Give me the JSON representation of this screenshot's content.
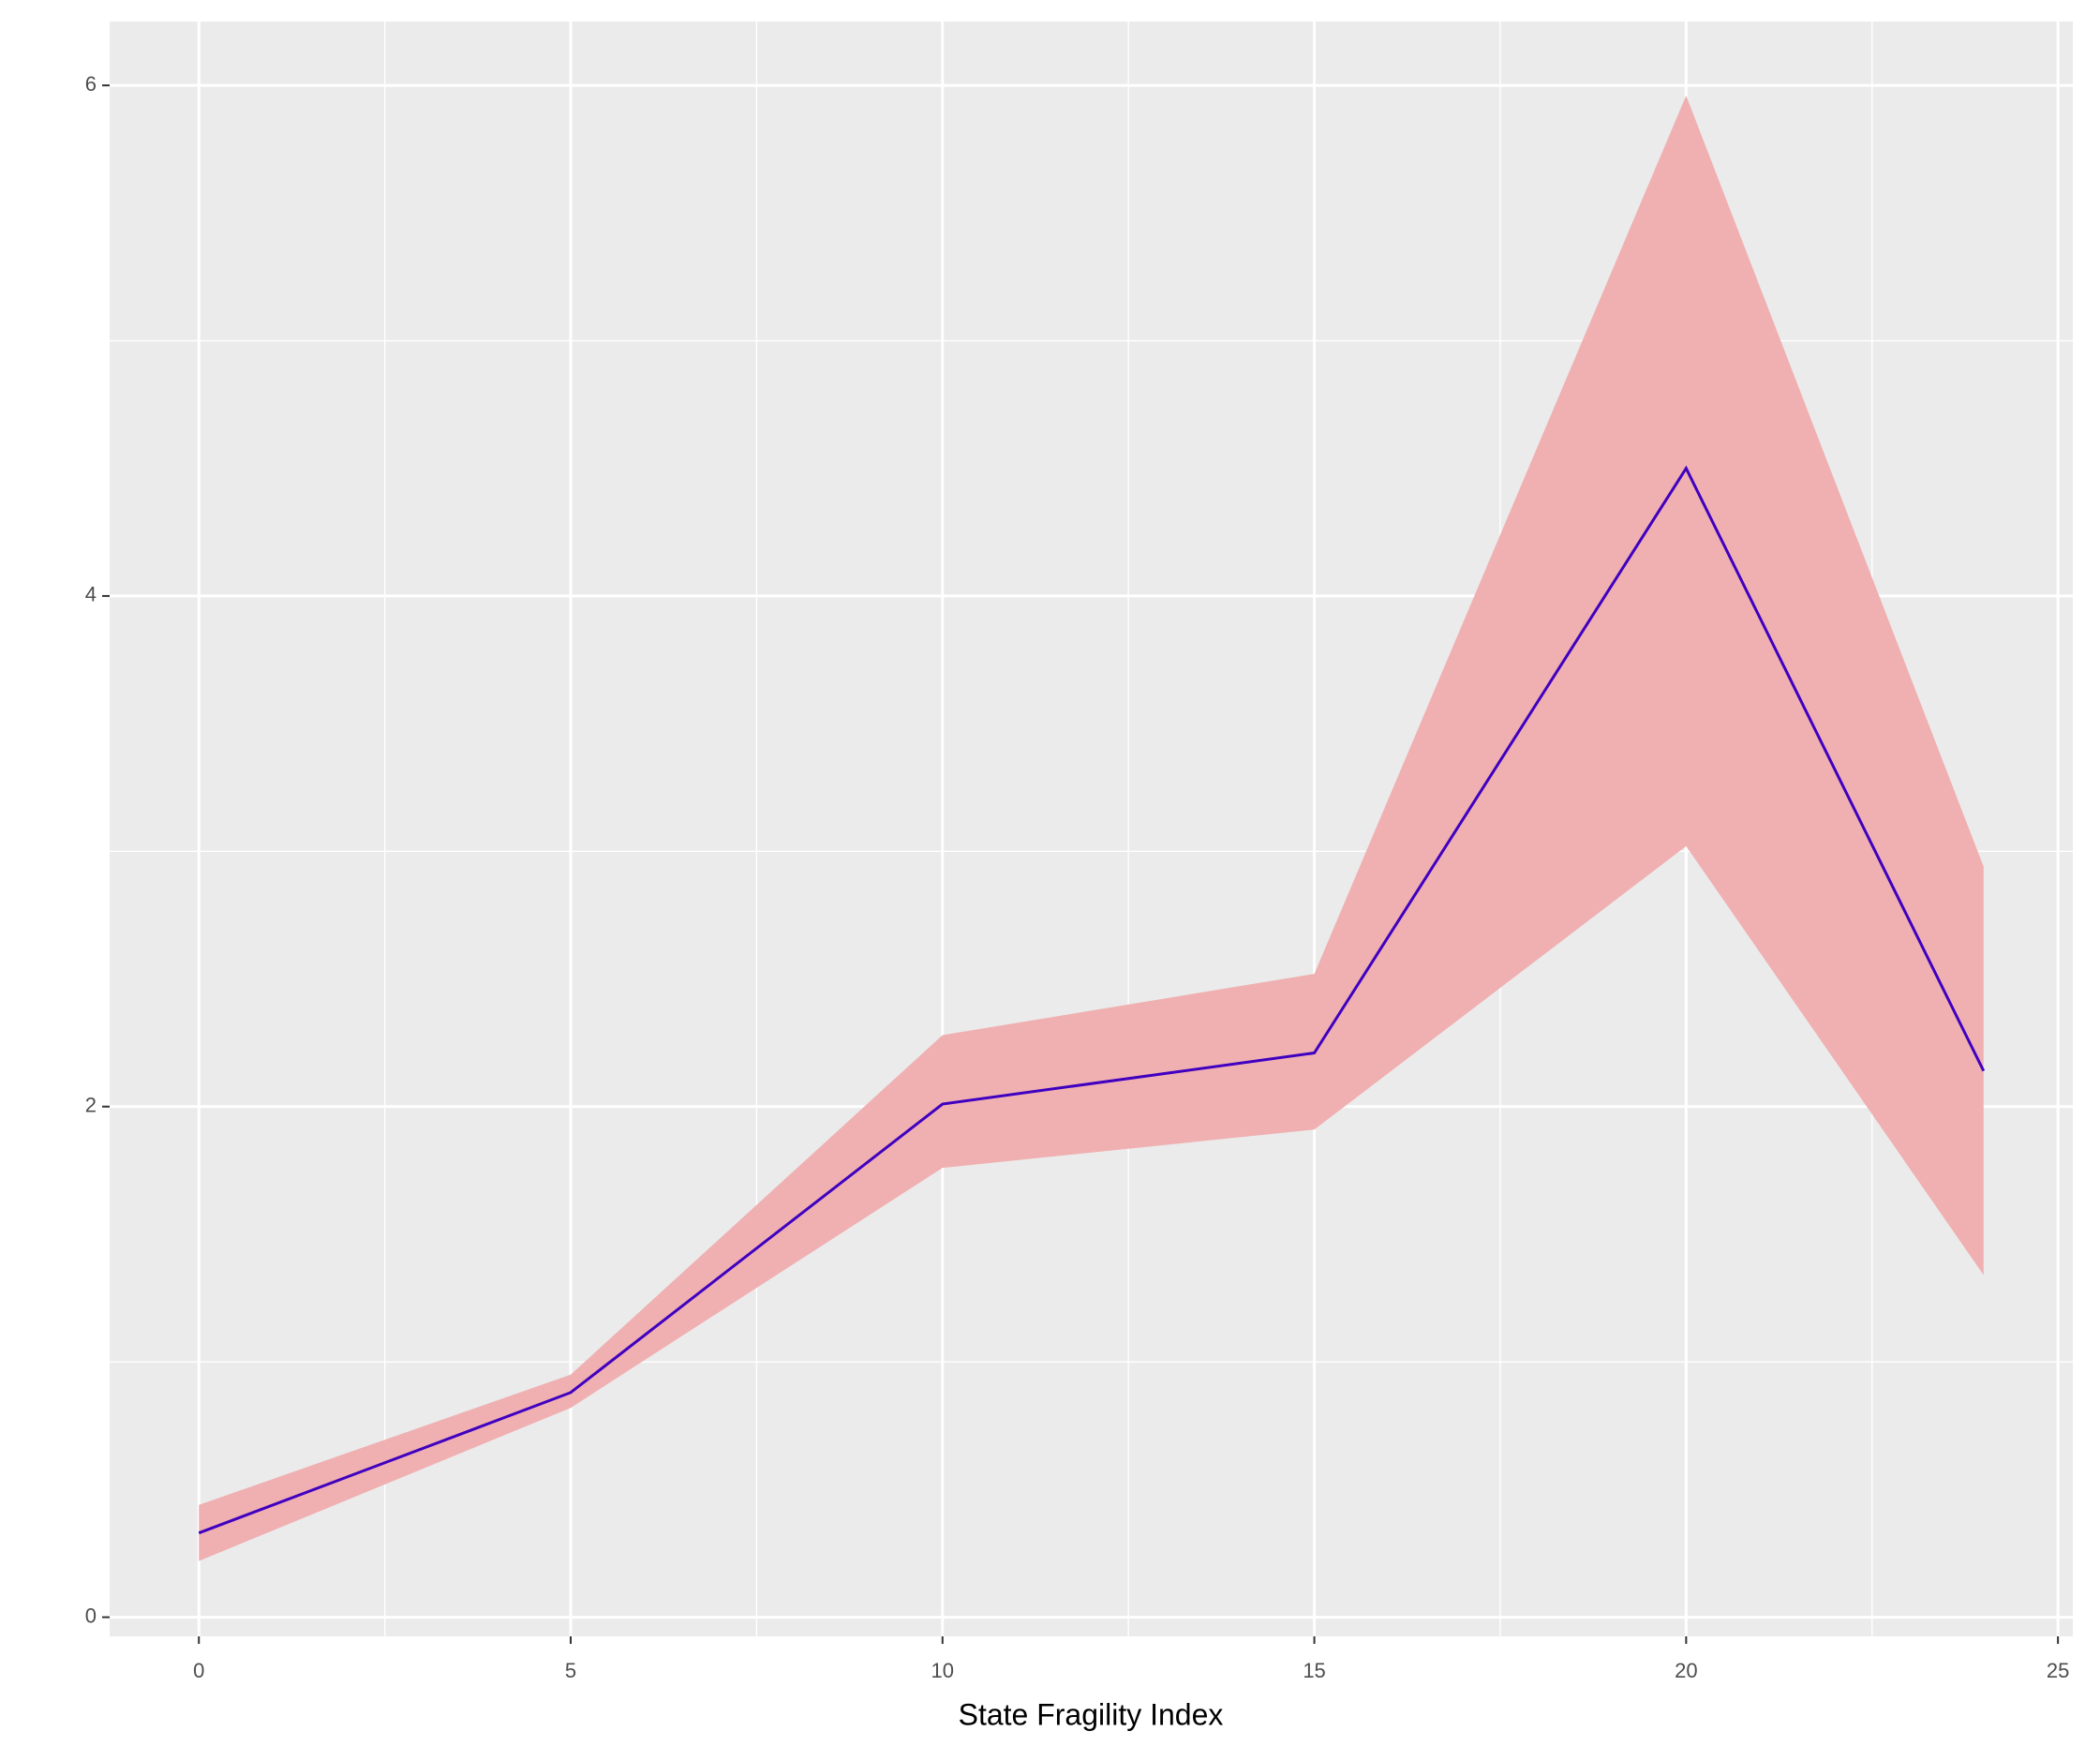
{
  "chart_data": {
    "type": "line",
    "x_label": "State Fragility Index",
    "x": [
      0,
      5,
      10,
      15,
      20,
      24
    ],
    "values": [
      0.33,
      0.88,
      2.01,
      2.21,
      4.5,
      2.14
    ],
    "lower": [
      0.22,
      0.82,
      1.76,
      1.91,
      3.02,
      1.34
    ],
    "upper": [
      0.44,
      0.95,
      2.28,
      2.52,
      5.96,
      2.94
    ],
    "color": "#3f00c0",
    "ribbon_color": "#f0b0b2",
    "xlim": [
      -1.2,
      25.2
    ],
    "ylim": [
      -0.075,
      6.25
    ],
    "xticks": [
      0,
      5,
      10,
      15,
      20,
      25
    ],
    "yticks": [
      0,
      2,
      4,
      6
    ],
    "x_minor_grid": [
      2.5,
      7.5,
      12.5,
      17.5,
      22.5
    ],
    "y_minor_grid": [
      1,
      3,
      5
    ],
    "grid": true
  }
}
